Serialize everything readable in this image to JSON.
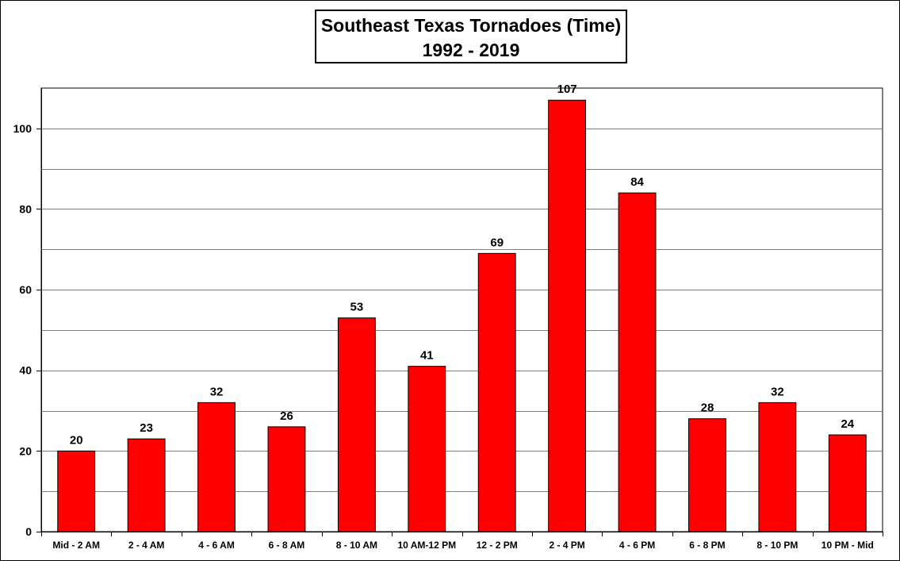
{
  "chart_data": {
    "type": "bar",
    "title": "Southeast Texas Tornadoes (Time)",
    "subtitle": "1992 - 2019",
    "xlabel": "",
    "ylabel": "",
    "categories": [
      "Mid - 2 AM",
      "2 - 4 AM",
      "4 - 6 AM",
      "6 - 8 AM",
      "8 - 10 AM",
      "10 AM-12 PM",
      "12 - 2 PM",
      "2 - 4 PM",
      "4 - 6 PM",
      "6 - 8 PM",
      "8 - 10 PM",
      "10 PM - Mid"
    ],
    "values": [
      20,
      23,
      32,
      26,
      53,
      41,
      69,
      107,
      84,
      28,
      32,
      24
    ],
    "ylim": [
      0,
      110
    ],
    "yticks": [
      0,
      20,
      40,
      60,
      80,
      100
    ],
    "gridlines": [
      10,
      20,
      30,
      40,
      50,
      60,
      70,
      80,
      90,
      100
    ],
    "grid": true,
    "legend": "none",
    "bar_color": "#ff0000"
  }
}
